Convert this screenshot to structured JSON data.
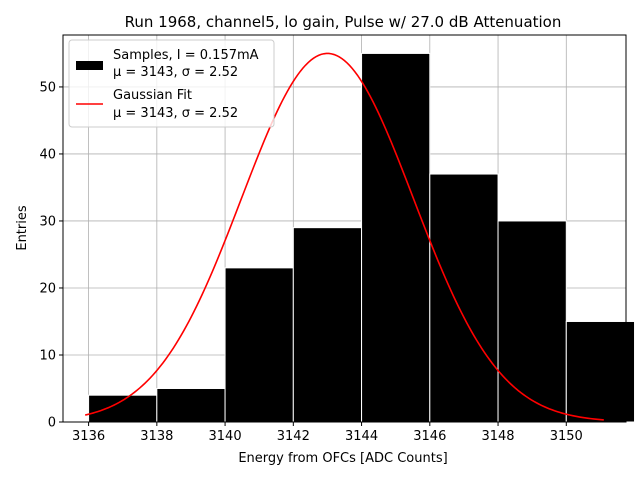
{
  "chart_data": {
    "type": "bar",
    "title": "Run 1968, channel5, lo gain, Pulse w/ 27.0 dB Attenuation",
    "xlabel": "Energy from OFCs [ADC Counts]",
    "ylabel": "Entries",
    "xlim": [
      3135.25,
      3151.75
    ],
    "ylim": [
      0,
      57.75
    ],
    "grid": true,
    "x_ticks": [
      3136,
      3138,
      3140,
      3142,
      3144,
      3146,
      3148,
      3150
    ],
    "y_ticks": [
      0,
      10,
      20,
      30,
      40,
      50
    ],
    "histogram": {
      "bin_edges": [
        3136,
        3138,
        3140,
        3142,
        3144,
        3146,
        3148,
        3150,
        3152
      ],
      "bins": [
        {
          "x0": 3136,
          "x1": 3138,
          "count": 4
        },
        {
          "x0": 3138,
          "x1": 3140,
          "count": 5
        },
        {
          "x0": 3140,
          "x1": 3142,
          "count": 23
        },
        {
          "x0": 3142,
          "x1": 3144,
          "count": 29
        },
        {
          "x0": 3144,
          "x1": 3146,
          "count": 55
        },
        {
          "x0": 3146,
          "x1": 3148,
          "count": 37
        },
        {
          "x0": 3148,
          "x1": 3150,
          "count": 30
        },
        {
          "x0": 3150,
          "x1": 3152,
          "count": 15
        }
      ],
      "color": "#000000",
      "edgecolor": "#ffffff"
    },
    "fit": {
      "name": "Gaussian Fit",
      "mu": 3143,
      "sigma": 2.52,
      "amplitude": 55,
      "x_range": [
        3135.9,
        3151.1
      ],
      "color": "#ff0000"
    },
    "legend": {
      "position": "top-left",
      "entries": [
        {
          "key": "samples",
          "line1": "Samples, I = 0.157mA",
          "line2": "μ = 3143, σ = 2.52"
        },
        {
          "key": "fit",
          "line1": "Gaussian Fit",
          "line2": "μ = 3143, σ = 2.52"
        }
      ]
    }
  }
}
